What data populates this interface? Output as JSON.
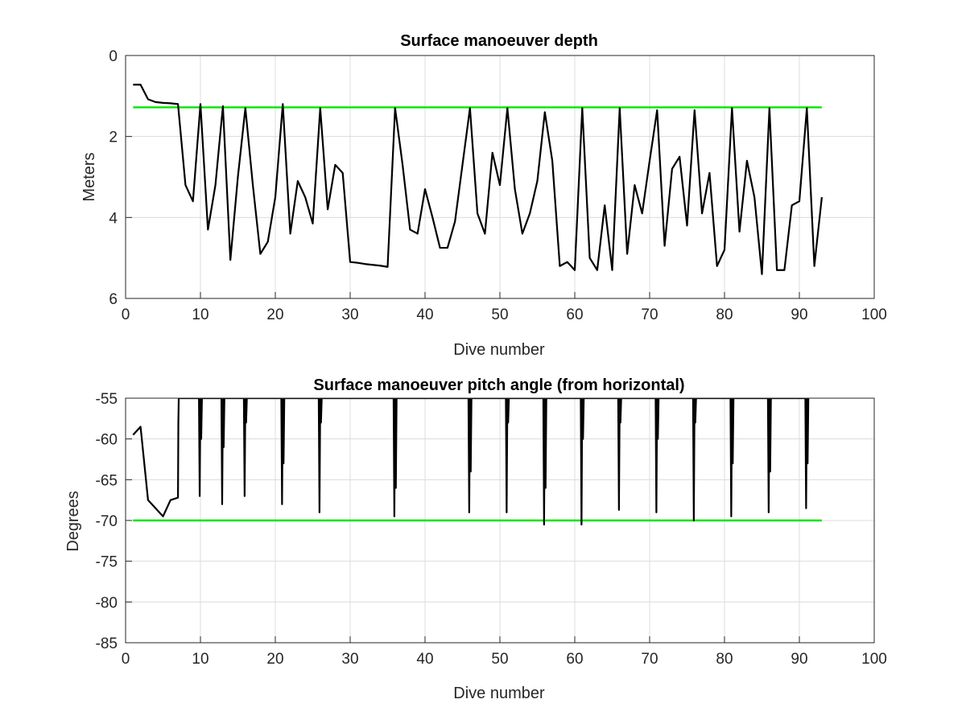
{
  "chart_data": [
    {
      "type": "line",
      "title": "Surface manoeuver depth",
      "xlabel": "Dive number",
      "ylabel": "Meters",
      "xlim": [
        0,
        100
      ],
      "ylim": [
        0,
        6
      ],
      "y_reversed": true,
      "grid": true,
      "xticks": [
        0,
        10,
        20,
        30,
        40,
        50,
        60,
        70,
        80,
        90,
        100
      ],
      "yticks": [
        0,
        2,
        4,
        6
      ],
      "xtick_labels": [
        "0",
        "10",
        "20",
        "30",
        "40",
        "50",
        "60",
        "70",
        "80",
        "90",
        "100"
      ],
      "ytick_labels": [
        "0",
        "2",
        "4",
        "6"
      ],
      "series": [
        {
          "color": "#000000",
          "x": [
            1,
            2,
            3,
            4,
            5,
            6,
            7,
            8,
            9,
            10,
            11,
            12,
            13,
            14,
            15,
            16,
            17,
            18,
            19,
            20,
            21,
            22,
            23,
            24,
            25,
            26,
            27,
            28,
            29,
            30,
            31,
            32,
            33,
            34,
            35,
            36,
            37,
            38,
            39,
            40,
            41,
            42,
            43,
            44,
            45,
            46,
            47,
            48,
            49,
            50,
            51,
            52,
            53,
            54,
            55,
            56,
            57,
            58,
            59,
            60,
            61,
            62,
            63,
            64,
            65,
            66,
            67,
            68,
            69,
            70,
            71,
            72,
            73,
            74,
            75,
            76,
            77,
            78,
            79,
            80,
            81,
            82,
            83,
            84,
            85,
            86,
            87,
            88,
            89,
            90,
            91,
            92,
            93
          ],
          "y": [
            0.72,
            0.72,
            1.08,
            1.15,
            1.17,
            1.18,
            1.2,
            3.2,
            3.6,
            1.2,
            4.3,
            3.2,
            1.25,
            5.05,
            3.0,
            1.3,
            3.2,
            4.9,
            4.6,
            3.5,
            1.2,
            4.4,
            3.1,
            3.5,
            4.15,
            1.3,
            3.8,
            2.7,
            2.9,
            5.1,
            5.12,
            5.15,
            5.17,
            5.19,
            5.22,
            1.3,
            2.7,
            4.3,
            4.4,
            3.3,
            4.0,
            4.75,
            4.75,
            4.1,
            2.7,
            1.3,
            3.9,
            4.4,
            2.4,
            3.2,
            1.3,
            3.3,
            4.4,
            3.9,
            3.1,
            1.4,
            2.6,
            5.2,
            5.1,
            5.3,
            1.3,
            5.0,
            5.3,
            3.7,
            5.3,
            1.3,
            4.9,
            3.2,
            3.9,
            2.6,
            1.35,
            4.7,
            2.8,
            2.5,
            4.2,
            1.35,
            3.9,
            2.9,
            5.2,
            4.8,
            1.3,
            4.35,
            2.6,
            3.5,
            5.4,
            1.3,
            5.3,
            5.3,
            3.7,
            3.6,
            1.3,
            5.2,
            3.5
          ]
        },
        {
          "color": "#00e600",
          "x": [
            1,
            93
          ],
          "y": [
            1.28,
            1.28
          ]
        }
      ]
    },
    {
      "type": "line",
      "title": "Surface manoeuver pitch angle (from horizontal)",
      "xlabel": "Dive number",
      "ylabel": "Degrees",
      "xlim": [
        0,
        100
      ],
      "ylim": [
        -85,
        -55
      ],
      "grid": true,
      "xticks": [
        0,
        10,
        20,
        30,
        40,
        50,
        60,
        70,
        80,
        90,
        100
      ],
      "yticks": [
        -55,
        -60,
        -65,
        -70,
        -75,
        -80,
        -85
      ],
      "xtick_labels": [
        "0",
        "10",
        "20",
        "30",
        "40",
        "50",
        "60",
        "70",
        "80",
        "90",
        "100"
      ],
      "ytick_labels": [
        "-55",
        "-60",
        "-65",
        "-70",
        "-75",
        "-80",
        "-85"
      ],
      "series": [
        {
          "color": "#000000",
          "x": [
            1,
            2,
            3,
            4,
            5,
            6,
            7,
            7.05,
            7.1,
            9.8,
            9.9,
            10,
            10.1,
            10.2,
            12.8,
            12.9,
            13,
            13.1,
            13.2,
            15.8,
            15.9,
            16,
            16.1,
            16.2,
            20.8,
            20.9,
            21,
            21.1,
            21.2,
            25.8,
            25.9,
            26,
            26.1,
            26.2,
            35.8,
            35.9,
            36,
            36.1,
            36.2,
            45.8,
            45.9,
            46,
            46.1,
            46.2,
            50.8,
            50.9,
            51,
            51.1,
            51.2,
            55.8,
            55.9,
            56,
            56.1,
            56.2,
            60.8,
            60.9,
            61,
            61.1,
            61.2,
            65.8,
            65.9,
            66,
            66.1,
            66.2,
            70.8,
            70.9,
            71,
            71.1,
            71.2,
            75.8,
            75.9,
            76,
            76.1,
            76.2,
            80.8,
            80.9,
            81,
            81.1,
            81.2,
            85.8,
            85.9,
            86,
            86.1,
            86.2,
            90.8,
            90.9,
            91,
            91.1,
            91.2
          ],
          "y": [
            -59.5,
            -58.5,
            -67.5,
            -68.5,
            -69.5,
            -67.5,
            -67.2,
            -58,
            -55,
            -55,
            -67,
            -55,
            -60,
            -55,
            -55,
            -68,
            -55,
            -61,
            -55,
            -55,
            -67,
            -55,
            -58,
            -55,
            -55,
            -68,
            -55,
            -63,
            -55,
            -55,
            -69,
            -55,
            -58,
            -55,
            -55,
            -69.5,
            -55,
            -66,
            -55,
            -55,
            -69,
            -55,
            -64,
            -55,
            -55,
            -69,
            -55,
            -58,
            -55,
            -55,
            -70.5,
            -55,
            -66,
            -55,
            -55,
            -70.5,
            -55,
            -60,
            -55,
            -55,
            -68.7,
            -55,
            -58,
            -55,
            -55,
            -69,
            -55,
            -60,
            -55,
            -55,
            -70,
            -55,
            -58,
            -55,
            -55,
            -69.5,
            -55,
            -63,
            -55,
            -55,
            -69,
            -55,
            -64,
            -55,
            -55,
            -68.5,
            -55,
            -63,
            -55
          ]
        },
        {
          "color": "#00e600",
          "x": [
            1,
            93
          ],
          "y": [
            -70,
            -70
          ]
        }
      ]
    }
  ]
}
